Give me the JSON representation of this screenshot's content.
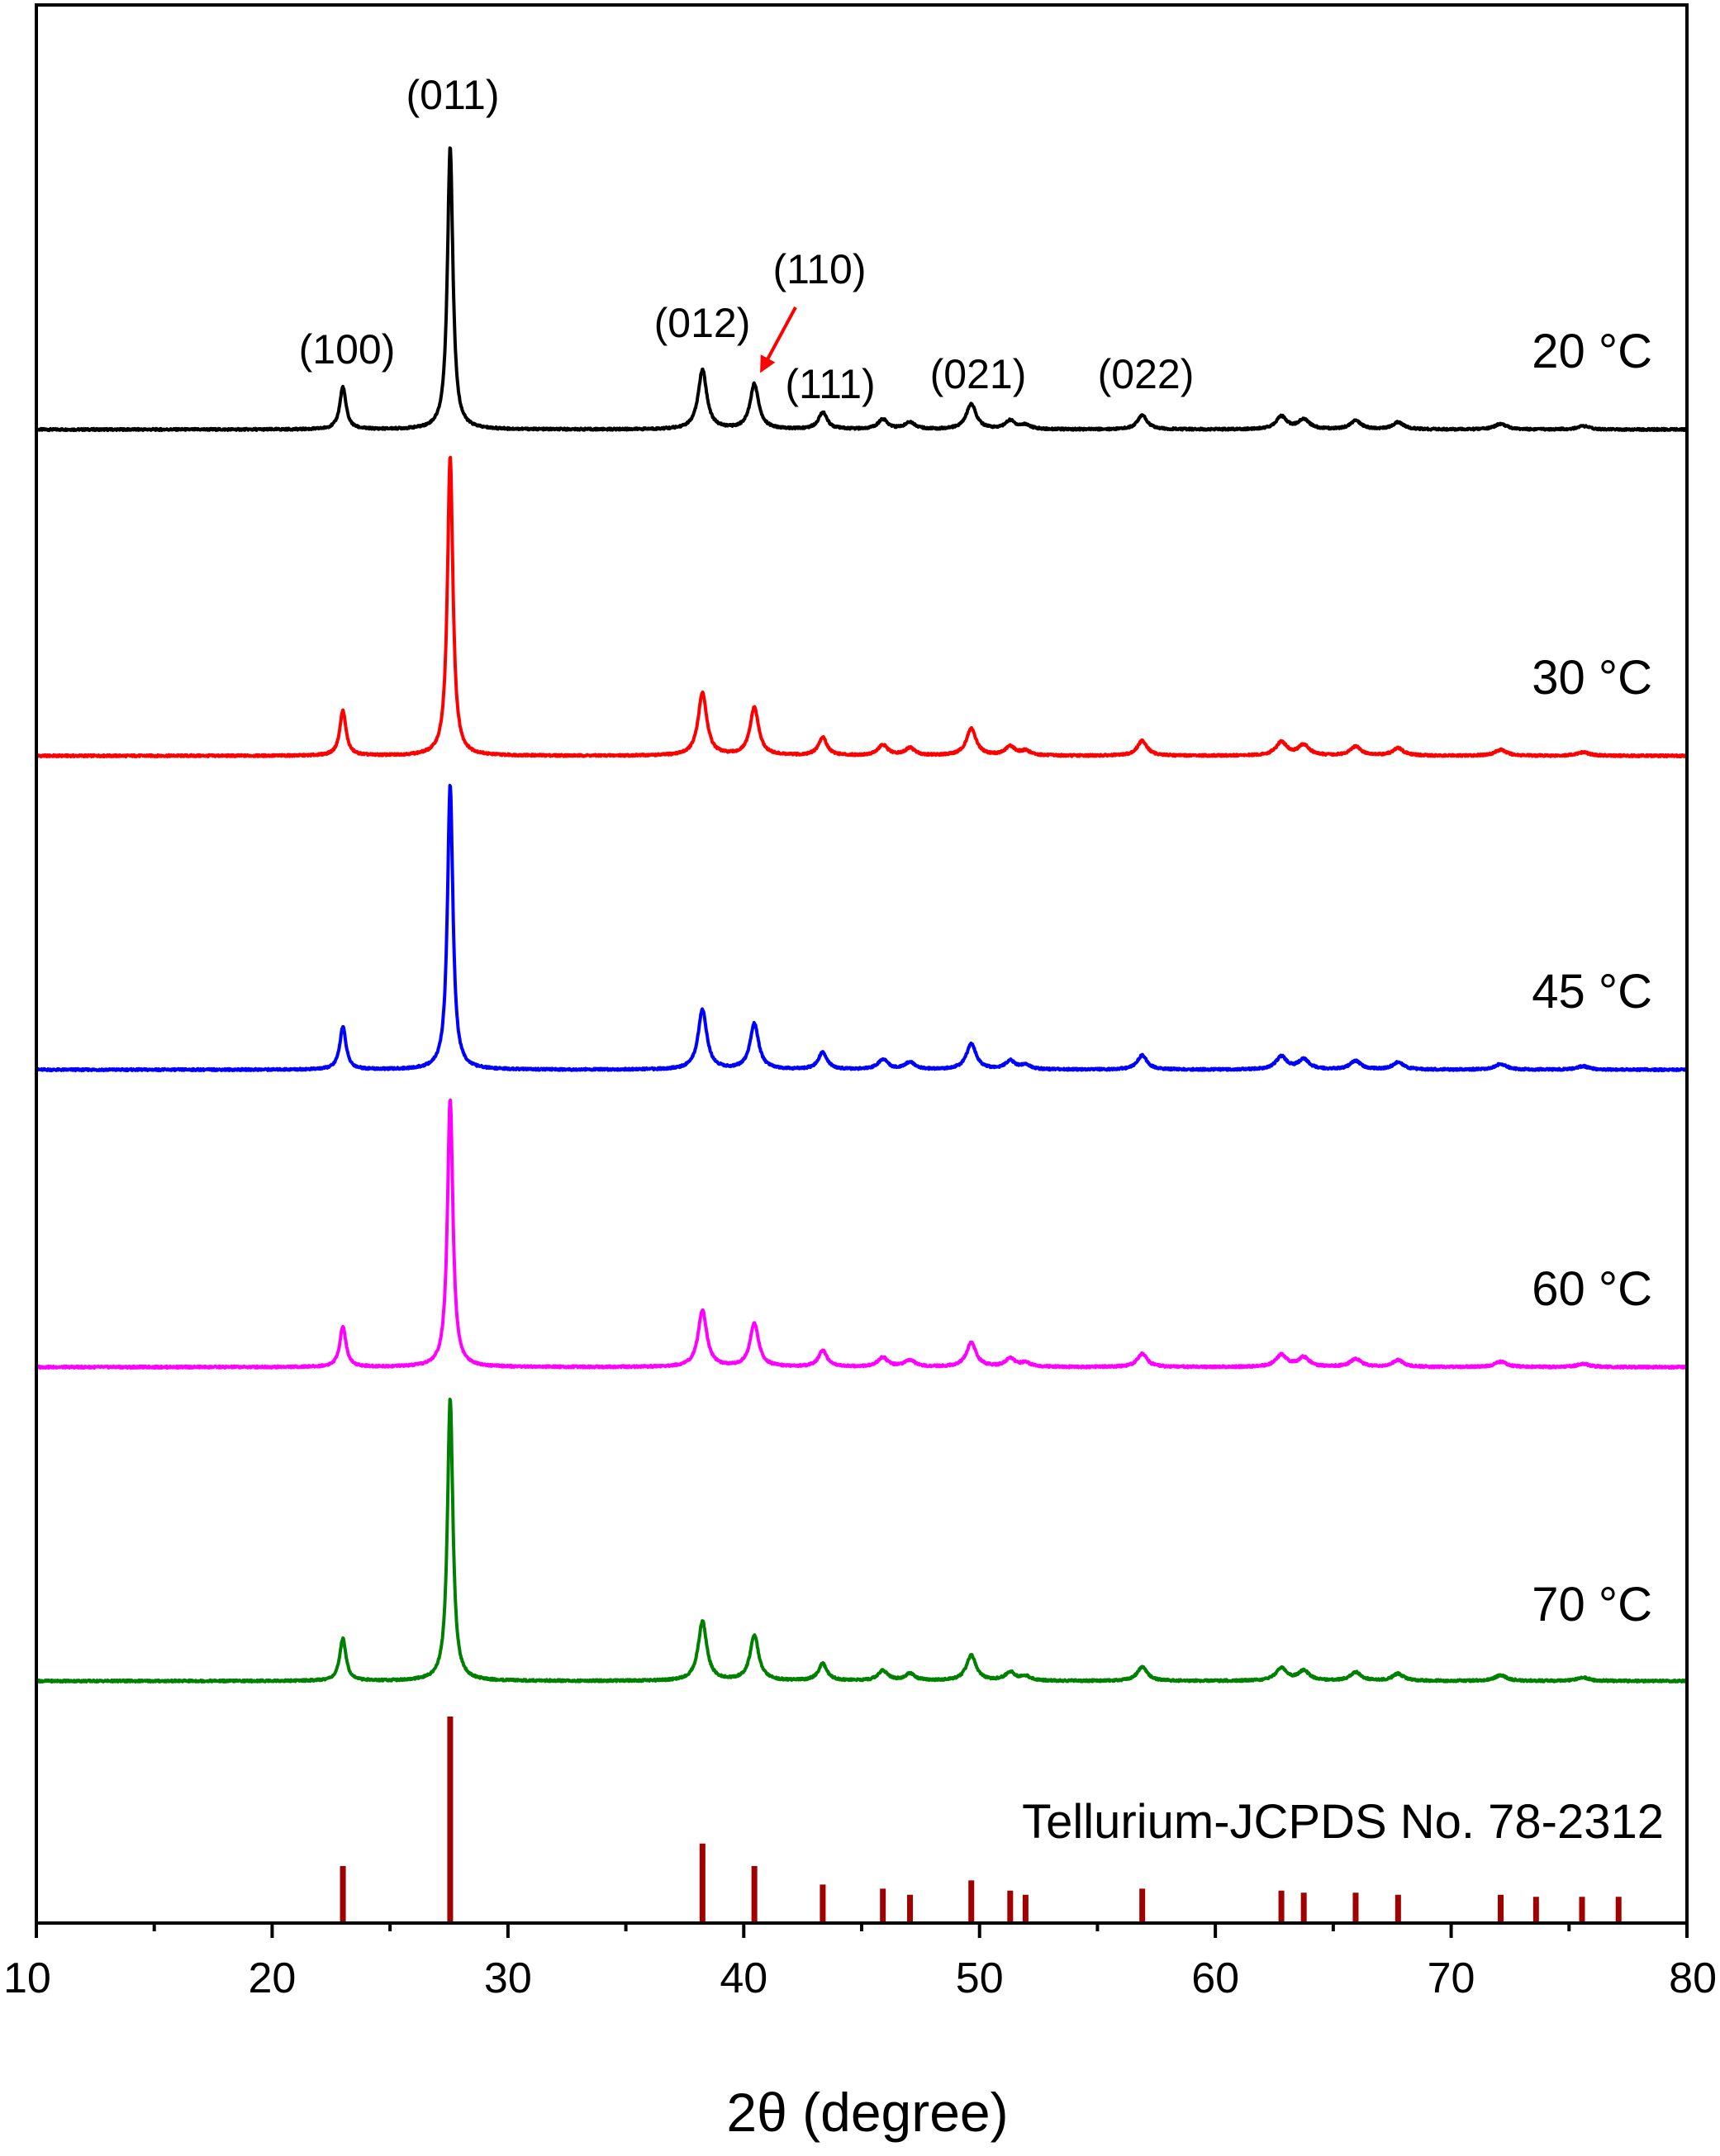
{
  "chart_data": {
    "type": "line",
    "xlabel": "2θ (degree)",
    "ylabel": "",
    "xlim": [
      10,
      80
    ],
    "x_ticks": [
      "10",
      "20",
      "30",
      "40",
      "50",
      "60",
      "70",
      "80"
    ],
    "y_ticks": [],
    "grid": false,
    "peaks": [
      {
        "x": 23.0,
        "rel": 0.15,
        "w": 0.16
      },
      {
        "x": 27.55,
        "rel": 1.0,
        "w": 0.14
      },
      {
        "x": 38.25,
        "rel": 0.21,
        "w": 0.22
      },
      {
        "x": 40.45,
        "rel": 0.16,
        "w": 0.22
      },
      {
        "x": 43.35,
        "rel": 0.06,
        "w": 0.22
      },
      {
        "x": 45.9,
        "rel": 0.035,
        "w": 0.25
      },
      {
        "x": 47.05,
        "rel": 0.025,
        "w": 0.25
      },
      {
        "x": 49.65,
        "rel": 0.09,
        "w": 0.25
      },
      {
        "x": 51.3,
        "rel": 0.03,
        "w": 0.25
      },
      {
        "x": 51.95,
        "rel": 0.015,
        "w": 0.25
      },
      {
        "x": 56.9,
        "rel": 0.05,
        "w": 0.25
      },
      {
        "x": 62.8,
        "rel": 0.045,
        "w": 0.28
      },
      {
        "x": 63.75,
        "rel": 0.035,
        "w": 0.28
      },
      {
        "x": 65.95,
        "rel": 0.03,
        "w": 0.28
      },
      {
        "x": 67.75,
        "rel": 0.025,
        "w": 0.28
      },
      {
        "x": 72.1,
        "rel": 0.02,
        "w": 0.3
      },
      {
        "x": 75.6,
        "rel": 0.012,
        "w": 0.3
      }
    ],
    "series": [
      {
        "name": "20 °C",
        "color": "#000000",
        "peak_scale": 1.0
      },
      {
        "name": "30 °C",
        "color": "#ff0000",
        "peak_scale": 1.0
      },
      {
        "name": "45 °C",
        "color": "#0000ff",
        "peak_scale": 1.0
      },
      {
        "name": "60 °C",
        "color": "#ff00ff",
        "peak_scale": 1.0
      },
      {
        "name": "70 °C",
        "color": "#008000",
        "peak_scale": 1.0
      }
    ],
    "reference": {
      "name": "Tellurium-JCPDS No. 78-2312",
      "color": "#a00000",
      "lines": [
        {
          "x": 23.0,
          "rel": 0.27
        },
        {
          "x": 27.55,
          "rel": 1.0
        },
        {
          "x": 38.25,
          "rel": 0.38
        },
        {
          "x": 40.45,
          "rel": 0.27
        },
        {
          "x": 43.35,
          "rel": 0.18
        },
        {
          "x": 45.9,
          "rel": 0.16
        },
        {
          "x": 47.05,
          "rel": 0.13
        },
        {
          "x": 49.65,
          "rel": 0.2
        },
        {
          "x": 51.3,
          "rel": 0.15
        },
        {
          "x": 51.95,
          "rel": 0.13
        },
        {
          "x": 56.9,
          "rel": 0.16
        },
        {
          "x": 62.8,
          "rel": 0.15
        },
        {
          "x": 63.75,
          "rel": 0.14
        },
        {
          "x": 65.95,
          "rel": 0.14
        },
        {
          "x": 67.75,
          "rel": 0.13
        },
        {
          "x": 72.1,
          "rel": 0.13
        },
        {
          "x": 73.6,
          "rel": 0.12
        },
        {
          "x": 75.55,
          "rel": 0.12
        },
        {
          "x": 77.1,
          "rel": 0.12
        }
      ]
    },
    "annotations": [
      {
        "text": "(100)",
        "x": 23.0
      },
      {
        "text": "(011)",
        "x": 27.55
      },
      {
        "text": "(012)",
        "x": 38.25
      },
      {
        "text": "(110)",
        "x": 40.45,
        "arrow": true,
        "arrow_color": "#ff0000"
      },
      {
        "text": "(111)",
        "x": 43.35
      },
      {
        "text": "(021)",
        "x": 49.65
      },
      {
        "text": "(022)",
        "x": 56.9
      }
    ]
  }
}
